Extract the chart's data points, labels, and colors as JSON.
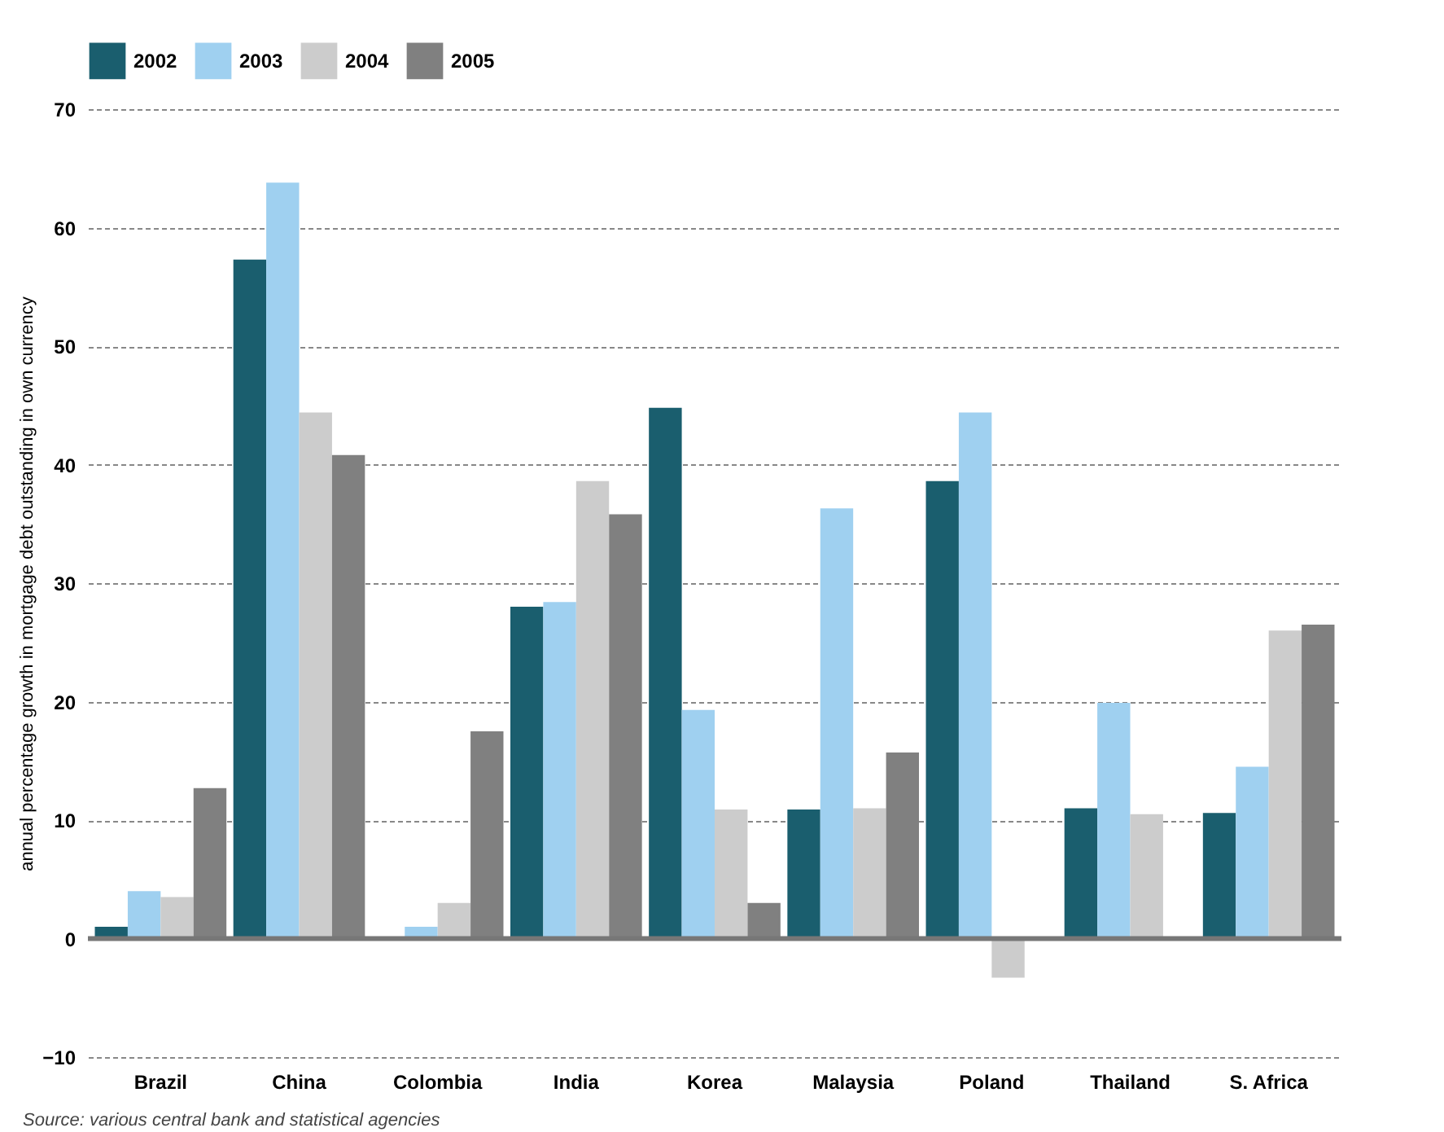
{
  "chart_data": {
    "type": "bar",
    "ylabel": "annual percentage growth in mortgage debt outstanding in own currency",
    "categories": [
      "Brazil",
      "China",
      "Colombia",
      "India",
      "Korea",
      "Malaysia",
      "Poland",
      "Thailand",
      "S. Africa"
    ],
    "series": [
      {
        "name": "2002",
        "color": "#1a5e6e",
        "values": [
          1,
          57.3,
          null,
          28,
          44.8,
          10.9,
          38.6,
          11,
          10.6
        ]
      },
      {
        "name": "2003",
        "color": "#9fd0f0",
        "values": [
          4,
          63.8,
          1,
          28.4,
          19.3,
          36.3,
          44.4,
          19.9,
          14.5
        ]
      },
      {
        "name": "2004",
        "color": "#cccccc",
        "values": [
          3.5,
          44.4,
          3,
          38.6,
          10.9,
          11,
          -3.3,
          10.5,
          26
        ]
      },
      {
        "name": "2005",
        "color": "#808080",
        "values": [
          12.7,
          40.8,
          17.5,
          35.8,
          3,
          15.7,
          null,
          null,
          26.5
        ]
      }
    ],
    "ylim": [
      -10,
      70
    ],
    "yticks": [
      -10,
      0,
      10,
      20,
      30,
      40,
      50,
      60,
      70
    ],
    "grid": "y",
    "legend": "top",
    "ref_lines": [
      {
        "axis": "y",
        "value": 0,
        "color": "#777777"
      }
    ],
    "annotations": [
      "Source: various central bank and statistical agencies"
    ]
  }
}
